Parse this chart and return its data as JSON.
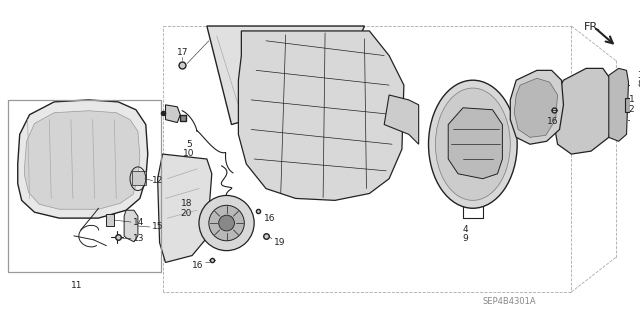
{
  "bg_color": "#ffffff",
  "diagram_code": "SEP4B4301A",
  "figsize": [
    6.4,
    3.19
  ],
  "dpi": 100,
  "line_color": "#222222",
  "gray_fill": "#d8d8d8",
  "light_fill": "#eeeeee",
  "dashed_color": "#aaaaaa",
  "label_fontsize": 6.5,
  "note_color": "#888888"
}
